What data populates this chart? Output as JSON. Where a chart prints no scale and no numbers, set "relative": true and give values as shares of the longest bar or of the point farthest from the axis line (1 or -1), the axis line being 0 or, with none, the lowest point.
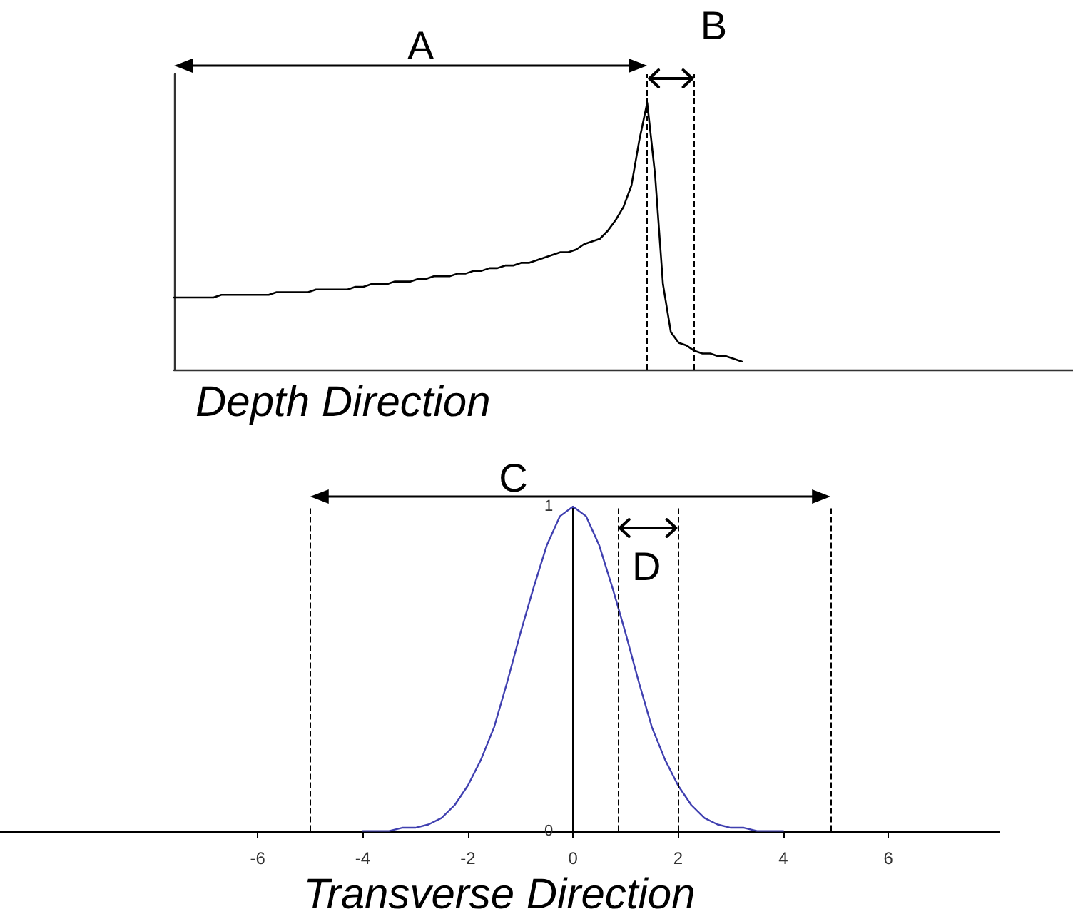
{
  "chart_data": [
    {
      "type": "line",
      "xlabel": "Depth Direction",
      "relative": true,
      "categories": [
        null,
        null,
        null,
        null,
        null,
        null,
        null,
        null,
        null,
        null,
        null,
        null,
        null,
        null,
        null,
        null,
        null,
        null,
        null,
        null,
        null,
        null,
        null,
        null,
        null,
        null,
        null,
        null,
        null,
        null,
        null,
        null,
        null,
        null,
        null,
        null,
        null,
        null,
        null,
        null,
        null,
        null,
        null,
        null,
        null,
        null,
        null,
        null,
        null,
        null,
        null,
        null,
        null,
        null,
        null,
        null,
        null,
        null,
        null,
        null,
        null,
        null,
        null,
        null,
        null,
        null,
        null,
        null,
        null,
        null,
        null,
        null,
        null,
        null,
        null,
        null,
        null,
        null,
        null,
        null,
        null,
        null,
        null,
        null,
        null,
        null,
        null,
        null,
        null,
        null,
        null,
        null,
        null,
        null,
        null,
        null,
        null,
        null,
        null,
        null,
        null,
        null,
        null,
        null,
        null,
        null,
        null,
        null,
        null,
        null,
        null,
        null,
        null,
        null,
        null
      ],
      "series": [
        {
          "color": "#000000",
          "values": [
            0.27,
            0.27,
            0.27,
            0.27,
            0.27,
            0.27,
            0.28,
            0.28,
            0.28,
            0.28,
            0.28,
            0.28,
            0.28,
            0.29,
            0.29,
            0.29,
            0.29,
            0.29,
            0.3,
            0.3,
            0.3,
            0.3,
            0.3,
            0.31,
            0.31,
            0.32,
            0.32,
            0.32,
            0.33,
            0.33,
            0.33,
            0.34,
            0.34,
            0.35,
            0.35,
            0.35,
            0.36,
            0.36,
            0.37,
            0.37,
            0.38,
            0.38,
            0.39,
            0.39,
            0.4,
            0.4,
            0.41,
            0.42,
            0.43,
            0.44,
            0.44,
            0.45,
            0.47,
            0.48,
            0.49,
            0.52,
            0.56,
            0.61,
            0.69,
            0.86,
            1,
            0.73,
            0.32,
            0.14,
            0.1,
            0.09,
            0.07,
            0.06,
            0.06,
            0.05,
            0.05,
            0.04,
            0.03,
            null,
            null,
            null,
            null,
            null,
            null,
            null,
            null,
            null,
            null,
            null,
            null,
            null,
            null,
            null,
            null,
            null,
            null,
            null,
            null,
            null,
            null,
            null,
            null,
            null,
            null,
            null,
            null,
            null,
            null,
            null,
            null,
            null,
            null,
            null,
            null,
            null,
            null,
            null,
            null,
            null,
            null
          ]
        }
      ],
      "annotations": [
        "A",
        "B"
      ]
    },
    {
      "type": "line",
      "xlabel": "Transverse Direction",
      "x": [
        -4,
        -3.75,
        -3.5,
        -3.25,
        -3,
        -2.75,
        -2.5,
        -2.25,
        -2,
        -1.75,
        -1.5,
        -1.25,
        -1,
        -0.75,
        -0.5,
        -0.25,
        0,
        0.25,
        0.5,
        0.75,
        1,
        1.25,
        1.5,
        1.75,
        2,
        2.25,
        2.5,
        2.75,
        3,
        3.25,
        3.5,
        3.75,
        4
      ],
      "series": [
        {
          "color": "#4040b0",
          "values": [
            0,
            0,
            0,
            0.01,
            0.01,
            0.02,
            0.04,
            0.08,
            0.14,
            0.22,
            0.32,
            0.46,
            0.61,
            0.75,
            0.88,
            0.97,
            1,
            0.97,
            0.88,
            0.75,
            0.61,
            0.46,
            0.32,
            0.22,
            0.14,
            0.08,
            0.04,
            0.02,
            0.01,
            0.01,
            0,
            0,
            0
          ]
        }
      ],
      "xlim": [
        -10.9,
        8.1
      ],
      "xticks": [
        -6,
        -4,
        -2,
        0,
        2,
        4,
        6
      ],
      "ylim": [
        0,
        1
      ],
      "yticks": [
        0,
        1
      ],
      "ref_lines": [
        {
          "axis": "x",
          "value": -5,
          "color": "#000000",
          "line_style": "dashed"
        },
        {
          "axis": "x",
          "value": 0.85,
          "color": "#000000",
          "line_style": "dashed"
        },
        {
          "axis": "x",
          "value": 2,
          "color": "#000000",
          "line_style": "dashed"
        },
        {
          "axis": "x",
          "value": 4.9,
          "color": "#000000",
          "line_style": "dashed"
        }
      ],
      "annotations": [
        "C",
        "D"
      ]
    }
  ]
}
